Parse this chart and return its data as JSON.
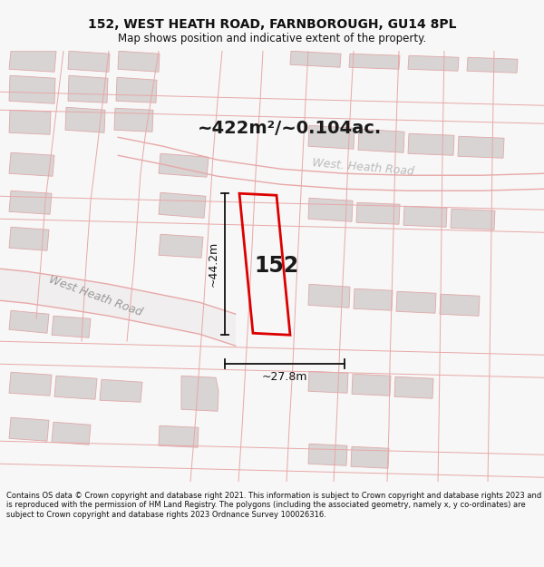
{
  "title": "152, WEST HEATH ROAD, FARNBOROUGH, GU14 8PL",
  "subtitle": "Map shows position and indicative extent of the property.",
  "area_label": "~422m²/~0.104ac.",
  "property_number": "152",
  "dim_h": "~27.8m",
  "dim_v": "~44.2m",
  "road_label1": "West Heath Road",
  "road_label2": "West. Heath Road",
  "copyright": "Contains OS data © Crown copyright and database right 2021. This information is subject to Crown copyright and database rights 2023 and is reproduced with the permission of HM Land Registry. The polygons (including the associated geometry, namely x, y co-ordinates) are subject to Crown copyright and database rights 2023 Ordnance Survey 100026316.",
  "bg_color": "#f7f7f7",
  "map_bg": "#f2f0f0",
  "road_color": "#e8a8a8",
  "property_color": "#dd0000",
  "dim_color": "#111111",
  "title_color": "#111111",
  "building_face": "#d8d4d4",
  "building_edge": "#e0a8a8",
  "fig_width": 6.0,
  "fig_height": 6.25
}
